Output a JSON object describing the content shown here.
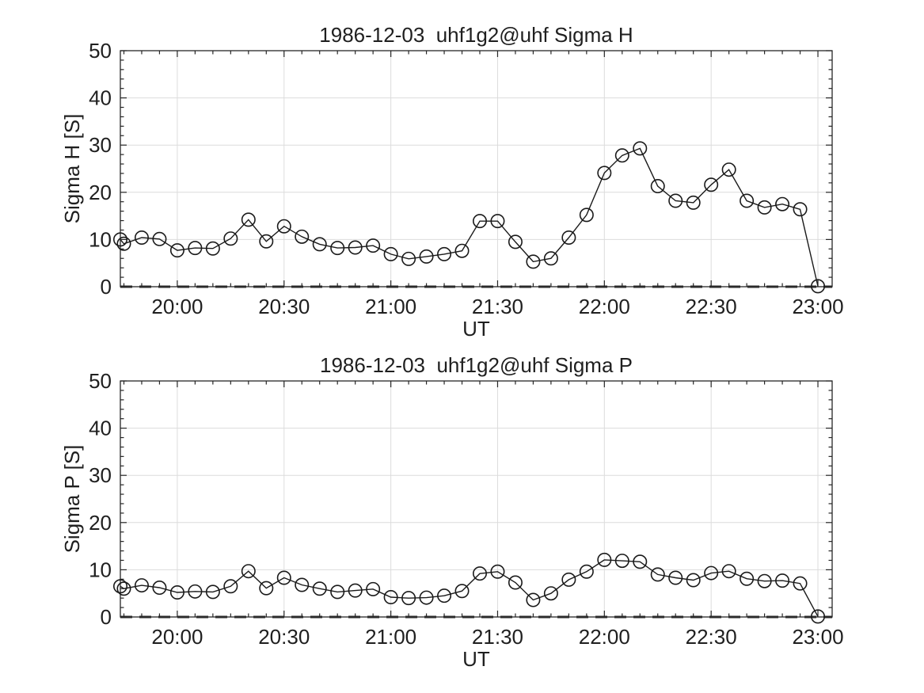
{
  "figure": {
    "background": "#ffffff",
    "text_color": "#1f1f1f",
    "axis_color": "#262626",
    "grid_color": "#dcdcdc",
    "line_color": "#1a1a1a"
  },
  "chart_data": [
    {
      "type": "line",
      "title": "1986-12-03  uhf1g2@uhf Sigma H",
      "xlabel": "UT",
      "ylabel": "Sigma H [S]",
      "x": [
        "19:44",
        "19:45",
        "19:50",
        "19:55",
        "20:00",
        "20:05",
        "20:10",
        "20:15",
        "20:20",
        "20:25",
        "20:30",
        "20:35",
        "20:40",
        "20:45",
        "20:50",
        "20:55",
        "21:00",
        "21:05",
        "21:10",
        "21:15",
        "21:20",
        "21:25",
        "21:30",
        "21:35",
        "21:40",
        "21:45",
        "21:50",
        "21:55",
        "22:00",
        "22:05",
        "22:10",
        "22:15",
        "22:20",
        "22:25",
        "22:30",
        "22:35",
        "22:40",
        "22:45",
        "22:50",
        "22:55",
        "23:00"
      ],
      "values": [
        10.0,
        9.1,
        10.4,
        10.1,
        7.7,
        8.2,
        8.1,
        10.2,
        14.2,
        9.6,
        12.8,
        10.6,
        9.0,
        8.2,
        8.3,
        8.7,
        6.9,
        5.9,
        6.4,
        6.9,
        7.6,
        13.9,
        13.9,
        9.5,
        5.3,
        6.0,
        10.4,
        15.2,
        24.1,
        27.8,
        29.3,
        21.3,
        18.2,
        17.8,
        21.6,
        24.8,
        18.2,
        16.8,
        17.5,
        16.4,
        0.1
      ],
      "x_ticks": [
        "20:00",
        "20:30",
        "21:00",
        "21:30",
        "22:00",
        "22:30",
        "23:00"
      ],
      "y_ticks": [
        0,
        10,
        20,
        30,
        40,
        50
      ],
      "xlim": [
        "19:44",
        "23:04"
      ],
      "ylim": [
        0,
        50
      ],
      "x_minor_step_minutes": 5,
      "y_minor_step": 2,
      "grid": "major",
      "legend_position": "none",
      "marker": "open-circle",
      "zero_dashed_line": true
    },
    {
      "type": "line",
      "title": "1986-12-03  uhf1g2@uhf Sigma P",
      "xlabel": "UT",
      "ylabel": "Sigma P [S]",
      "x": [
        "19:44",
        "19:45",
        "19:50",
        "19:55",
        "20:00",
        "20:05",
        "20:10",
        "20:15",
        "20:20",
        "20:25",
        "20:30",
        "20:35",
        "20:40",
        "20:45",
        "20:50",
        "20:55",
        "21:00",
        "21:05",
        "21:10",
        "21:15",
        "21:20",
        "21:25",
        "21:30",
        "21:35",
        "21:40",
        "21:45",
        "21:50",
        "21:55",
        "22:00",
        "22:05",
        "22:10",
        "22:15",
        "22:20",
        "22:25",
        "22:30",
        "22:35",
        "22:40",
        "22:45",
        "22:50",
        "22:55",
        "23:00"
      ],
      "values": [
        6.5,
        6.0,
        6.7,
        6.2,
        5.2,
        5.4,
        5.3,
        6.5,
        9.7,
        6.1,
        8.3,
        6.8,
        6.0,
        5.3,
        5.6,
        5.9,
        4.2,
        4.0,
        4.1,
        4.5,
        5.5,
        9.2,
        9.6,
        7.3,
        3.6,
        5.0,
        7.9,
        9.6,
        12.1,
        11.9,
        11.7,
        9.0,
        8.3,
        7.8,
        9.3,
        9.7,
        8.1,
        7.6,
        7.7,
        7.1,
        0.1
      ],
      "x_ticks": [
        "20:00",
        "20:30",
        "21:00",
        "21:30",
        "22:00",
        "22:30",
        "23:00"
      ],
      "y_ticks": [
        0,
        10,
        20,
        30,
        40,
        50
      ],
      "xlim": [
        "19:44",
        "23:04"
      ],
      "ylim": [
        0,
        50
      ],
      "x_minor_step_minutes": 5,
      "y_minor_step": 2,
      "grid": "major",
      "legend_position": "none",
      "marker": "open-circle",
      "zero_dashed_line": true
    }
  ]
}
